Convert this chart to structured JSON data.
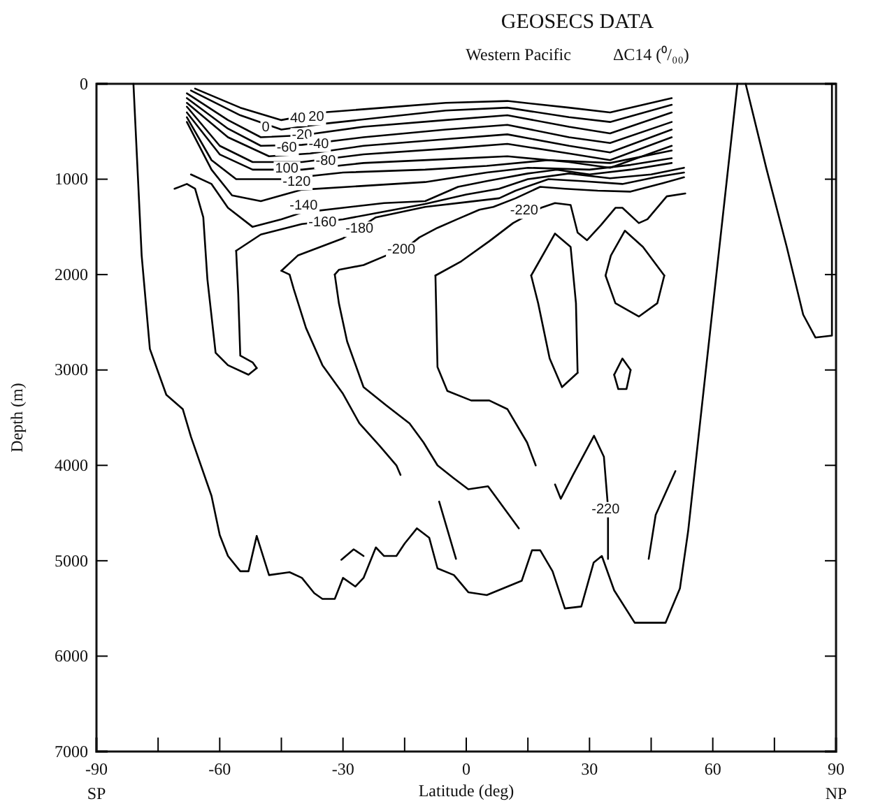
{
  "chart_data": {
    "type": "line",
    "title": "GEOSECS DATA",
    "subtitle": "Western Pacific          ΔC14 (⁰/₀₀)",
    "xlabel": "Latitude (deg)",
    "ylabel": "Depth (m)",
    "xlim": [
      -90,
      90
    ],
    "xticks": [
      -90,
      {
        "value": -75,
        "label": null
      },
      -60,
      {
        "value": -45,
        "label": null
      },
      -30,
      {
        "value": -15,
        "label": null
      },
      0,
      {
        "value": 15,
        "label": null
      },
      30,
      {
        "value": 45,
        "label": null
      },
      60,
      {
        "value": 75,
        "label": null
      },
      90
    ],
    "ylim": [
      7000,
      0
    ],
    "yticks": [
      0,
      1000,
      2000,
      3000,
      4000,
      5000,
      6000,
      7000
    ],
    "series": [
      {
        "color": "#000000",
        "x": [
          -81,
          -79,
          -77,
          -73,
          -69,
          -67,
          -62,
          -60,
          -58,
          -55,
          -53,
          -51,
          -48,
          -43,
          -40,
          -37,
          -35,
          -32,
          -30,
          -27,
          -25,
          -22,
          -20,
          -17,
          -15,
          -12,
          -9,
          -7,
          -3,
          0.5,
          5,
          13.5,
          16,
          18,
          21,
          24,
          28,
          31,
          33,
          36,
          41,
          48.5,
          52,
          54,
          60,
          66
        ],
        "values": [
          0,
          1800,
          2780,
          3260,
          3410,
          3700,
          4320,
          4730,
          4950,
          5110,
          5110,
          4740,
          5150,
          5120,
          5180,
          5340,
          5400,
          5400,
          5180,
          5270,
          5180,
          4860,
          4950,
          4950,
          4820,
          4660,
          4760,
          5080,
          5150,
          5330,
          5360,
          5210,
          4890,
          4890,
          5110,
          5500,
          5480,
          5020,
          4950,
          5310,
          5650,
          5650,
          5290,
          4690,
          2340,
          0
        ]
      },
      {
        "color": "#000000",
        "x": [
          68,
          73,
          78,
          82,
          85,
          89,
          89
        ],
        "values": [
          0,
          880,
          1710,
          2420,
          2660,
          2640,
          0
        ]
      },
      {
        "color": "#000000",
        "x": [
          -66,
          -55,
          -45,
          -35,
          -20,
          -5,
          10,
          25,
          35,
          50
        ],
        "values": [
          50,
          250,
          380,
          300,
          250,
          200,
          180,
          250,
          300,
          150
        ]
      },
      {
        "color": "#000000",
        "x": [
          -67,
          -55,
          -45,
          -35,
          -20,
          -5,
          10,
          25,
          35,
          50
        ],
        "values": [
          70,
          330,
          480,
          420,
          350,
          280,
          250,
          350,
          400,
          220
        ]
      },
      {
        "color": "#000000",
        "x": [
          -68,
          -58,
          -50,
          -40,
          -25,
          -5,
          10,
          25,
          35,
          50
        ],
        "values": [
          100,
          380,
          560,
          540,
          450,
          380,
          330,
          450,
          520,
          300
        ]
      },
      {
        "color": "#000000",
        "x": [
          -68,
          -58,
          -50,
          -40,
          -25,
          -5,
          10,
          25,
          35,
          50
        ],
        "values": [
          150,
          470,
          650,
          640,
          560,
          480,
          430,
          560,
          620,
          400
        ]
      },
      {
        "color": "#000000",
        "x": [
          -68,
          -58,
          -48,
          -38,
          -25,
          -5,
          10,
          25,
          35,
          50
        ],
        "values": [
          200,
          560,
          760,
          730,
          650,
          580,
          530,
          650,
          720,
          480
        ]
      },
      {
        "color": "#000000",
        "x": [
          -68,
          -60,
          -52,
          -40,
          -25,
          -5,
          10,
          25,
          35,
          50
        ],
        "values": [
          240,
          650,
          820,
          820,
          740,
          680,
          630,
          730,
          800,
          560
        ]
      },
      {
        "color": "#000000",
        "x": [
          -68,
          -60,
          -52,
          -40,
          -25,
          -5,
          10,
          25,
          35,
          50
        ],
        "values": [
          300,
          740,
          900,
          900,
          830,
          790,
          760,
          820,
          880,
          650
        ]
      },
      {
        "color": "#000000",
        "x": [
          -68,
          -62,
          -56,
          -45,
          -30,
          -10,
          5,
          20,
          35,
          50
        ],
        "values": [
          350,
          800,
          1000,
          1000,
          930,
          900,
          860,
          800,
          830,
          700
        ]
      },
      {
        "color": "#000000",
        "x": [
          -68,
          -62,
          -57,
          -50,
          -40,
          -25,
          -10,
          5,
          15,
          30,
          40,
          50
        ],
        "values": [
          400,
          900,
          1170,
          1230,
          1110,
          1070,
          1030,
          930,
          880,
          900,
          850,
          780
        ]
      },
      {
        "color": "#000000",
        "x": [
          -67,
          -62,
          -58,
          -52,
          -45,
          -40,
          -30,
          -20,
          -10,
          -2,
          5,
          15,
          22,
          30,
          40,
          50
        ],
        "values": [
          950,
          1050,
          1300,
          1500,
          1420,
          1350,
          1300,
          1250,
          1230,
          1080,
          1020,
          940,
          900,
          950,
          900,
          830
        ]
      },
      {
        "color": "#000000",
        "x": [
          -71,
          -68,
          -66,
          -64,
          -63,
          -61,
          -58,
          -53,
          -51
        ],
        "values": [
          1100,
          1050,
          1100,
          1400,
          2050,
          2820,
          2950,
          3050,
          2980
        ]
      },
      {
        "color": "#000000",
        "x": [
          -56,
          -55.5,
          -55,
          -52,
          -51
        ],
        "values": [
          1750,
          2200,
          2850,
          2920,
          2980
        ]
      },
      {
        "color": "#000000",
        "x": [
          -56,
          -50,
          -40,
          -30,
          -20,
          -10,
          0,
          8,
          15,
          25,
          35,
          45,
          53
        ],
        "values": [
          1750,
          1580,
          1470,
          1420,
          1340,
          1260,
          1160,
          1100,
          1000,
          940,
          990,
          950,
          880
        ]
      },
      {
        "color": "#000000",
        "x": [
          -45,
          -43,
          -42,
          -39,
          -35,
          -30,
          -26,
          -21,
          -17,
          -16
        ],
        "values": [
          1960,
          2000,
          2150,
          2560,
          2950,
          3250,
          3560,
          3800,
          4000,
          4100
        ]
      },
      {
        "color": "#000000",
        "x": [
          -45,
          -41,
          -30,
          -22,
          -10,
          0,
          8,
          12,
          20,
          28,
          38,
          46,
          53
        ],
        "values": [
          1960,
          1800,
          1620,
          1400,
          1290,
          1240,
          1200,
          1120,
          1000,
          1020,
          1050,
          980,
          930
        ]
      },
      {
        "color": "#000000",
        "x": [
          -32,
          -31,
          -29,
          -25,
          -19.5,
          -13.8,
          -10.4,
          -7,
          -3.2,
          0.5,
          5.3,
          12.8
        ],
        "values": [
          2000,
          2300,
          2700,
          3180,
          3370,
          3560,
          3760,
          4000,
          4130,
          4250,
          4220,
          4660
        ]
      },
      {
        "color": "#000000",
        "x": [
          -32,
          -31,
          -25,
          -19.5,
          -15.8,
          -11.4,
          -7,
          -2.2,
          3.2,
          6.6,
          12,
          18,
          24,
          32,
          40,
          48,
          53
        ],
        "values": [
          2000,
          1950,
          1900,
          1800,
          1760,
          1610,
          1510,
          1420,
          1320,
          1290,
          1200,
          1080,
          1100,
          1120,
          1130,
          1040,
          980
        ]
      },
      {
        "color": "#000000",
        "x": [
          -7.5,
          -7,
          -4.6,
          1.2,
          5.6,
          10,
          14.8,
          16.9
        ],
        "values": [
          2010,
          2970,
          3220,
          3320,
          3320,
          3410,
          3760,
          4000
        ]
      },
      {
        "color": "#000000",
        "x": [
          -7.5,
          -1.2,
          5.6,
          11.4,
          18.2,
          21.6,
          25.4,
          27.1,
          29.4,
          32.8,
          36.3,
          38,
          42,
          44.1,
          48.8,
          53.3
        ],
        "values": [
          2010,
          1860,
          1650,
          1460,
          1300,
          1250,
          1270,
          1560,
          1640,
          1480,
          1300,
          1300,
          1460,
          1420,
          1180,
          1150
        ]
      },
      {
        "color": "#000000",
        "x": [
          15.8,
          21.6,
          25.4,
          26.7,
          27.1
        ],
        "values": [
          2010,
          1570,
          1710,
          2300,
          3030
        ]
      },
      {
        "color": "#000000",
        "x": [
          15.8,
          17.5,
          20.3,
          23.3,
          27.1
        ],
        "values": [
          2010,
          2300,
          2880,
          3180,
          3030
        ]
      },
      {
        "color": "#000000",
        "x": [
          33.9,
          35.2,
          38.6,
          43,
          48.2
        ],
        "values": [
          2010,
          1800,
          1540,
          1710,
          2010
        ]
      },
      {
        "color": "#000000",
        "x": [
          33.9,
          36.3,
          42,
          46.5,
          48.2
        ],
        "values": [
          2010,
          2300,
          2440,
          2300,
          2010
        ]
      },
      {
        "color": "#000000",
        "x": [
          36,
          38,
          40
        ],
        "values": [
          3050,
          2880,
          3000
        ]
      },
      {
        "color": "#000000",
        "x": [
          36,
          37,
          39,
          40
        ],
        "values": [
          3050,
          3200,
          3200,
          3000
        ]
      },
      {
        "color": "#000000",
        "x": [
          -30.4,
          -27.4,
          -25
        ],
        "values": [
          4990,
          4880,
          4950
        ]
      },
      {
        "color": "#000000",
        "x": [
          -6.6,
          -2.5
        ],
        "values": [
          4380,
          4980
        ]
      },
      {
        "color": "#000000",
        "x": [
          21.6,
          23,
          26,
          31.1,
          33.5,
          34.5,
          34.5
        ],
        "values": [
          4200,
          4350,
          4100,
          3690,
          3910,
          4440,
          4980
        ]
      },
      {
        "color": "#000000",
        "x": [
          44.4,
          46.1,
          50.9
        ],
        "values": [
          4980,
          4520,
          4060
        ]
      }
    ],
    "annotations": [
      {
        "text": "40",
        "x": -41,
        "y": 350
      },
      {
        "text": "20",
        "x": -36.5,
        "y": 340
      },
      {
        "text": "0",
        "x": -48.8,
        "y": 450
      },
      {
        "text": "-20",
        "x": -40,
        "y": 530
      },
      {
        "text": "-40",
        "x": -35.9,
        "y": 620
      },
      {
        "text": "-60",
        "x": -43.7,
        "y": 660
      },
      {
        "text": "-80",
        "x": -34.2,
        "y": 800
      },
      {
        "text": "100",
        "x": -43.7,
        "y": 880
      },
      {
        "text": "-120",
        "x": -41.3,
        "y": 1020
      },
      {
        "text": "-140",
        "x": -39.6,
        "y": 1270
      },
      {
        "text": "-160",
        "x": -35,
        "y": 1445
      },
      {
        "text": "-180",
        "x": -26,
        "y": 1510
      },
      {
        "text": "-200",
        "x": -15.8,
        "y": 1730
      },
      {
        "text": "-220",
        "x": 14.1,
        "y": 1320
      },
      {
        "text": "-220",
        "x": 33.9,
        "y": 4450
      },
      "SP",
      "NP"
    ]
  }
}
